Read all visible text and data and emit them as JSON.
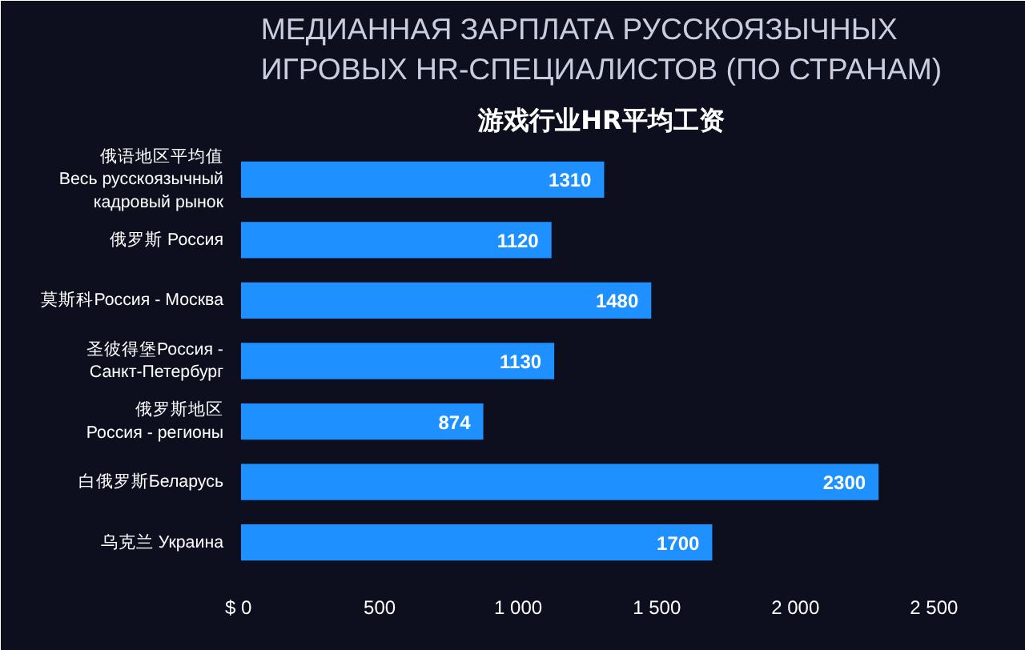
{
  "chart_data": {
    "type": "bar",
    "orientation": "horizontal",
    "title": "МЕДИАННАЯ ЗАРПЛАТА РУССКОЯЗЫЧНЫХ\nИГРОВЫХ HR-СПЕЦИАЛИСТОВ (ПО СТРАНАМ)",
    "subtitle": "游戏行业HR平均工资",
    "categories": [
      "俄语地区平均值\nВесь русскоязычный\nкадровый рынок",
      "俄罗斯 Россия",
      "莫斯科Россия - Москва",
      "圣彼得堡Россия -\nСанкт-Петербург",
      "俄罗斯地区\nРоссия - регионы",
      "白俄罗斯Беларусь",
      "乌克兰 Украина"
    ],
    "values": [
      1310,
      1120,
      1480,
      1130,
      874,
      2300,
      1700
    ],
    "color": "#1e90ff",
    "data_labels": true,
    "grid": false,
    "xlim": [
      0,
      2600
    ],
    "xticks": [
      {
        "value": 0,
        "label": "$  0"
      },
      500,
      {
        "value": 1000,
        "label": "1 000"
      },
      {
        "value": 1500,
        "label": "1 500"
      },
      {
        "value": 2000,
        "label": "2 000"
      },
      {
        "value": 2500,
        "label": "2 500"
      }
    ]
  }
}
